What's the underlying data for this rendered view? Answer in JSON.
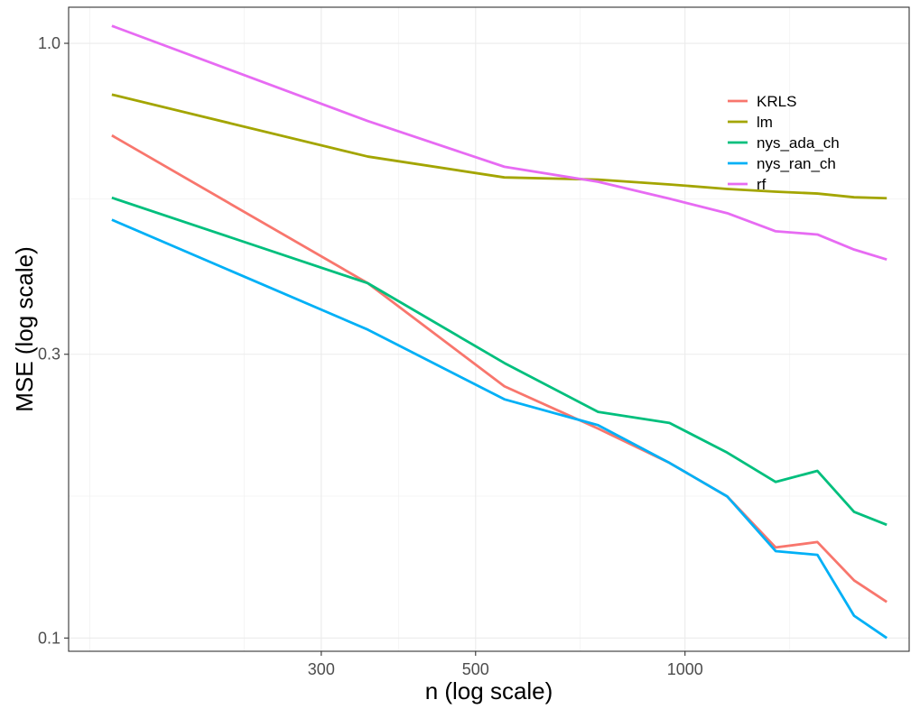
{
  "chart_data": {
    "type": "line",
    "title": "",
    "xlabel": "n (log scale)",
    "ylabel": "MSE (log scale)",
    "x_scale": "log",
    "y_scale": "log",
    "xlim": [
      130,
      2100
    ],
    "ylim": [
      0.095,
      1.15
    ],
    "x_ticks": [
      300,
      500,
      1000
    ],
    "x_tick_labels": [
      "300",
      "500",
      "1000"
    ],
    "y_ticks": [
      0.1,
      0.3,
      1.0
    ],
    "y_tick_labels": [
      "0.1",
      "0.3",
      "1.0"
    ],
    "grid": true,
    "legend_position": "top-right",
    "x": [
      150,
      350,
      550,
      750,
      950,
      1150,
      1350,
      1550,
      1750,
      1950
    ],
    "series": [
      {
        "name": "KRLS",
        "color": "#F8766D",
        "values": [
          0.7,
          0.395,
          0.265,
          0.225,
          0.197,
          0.173,
          0.142,
          0.145,
          0.125,
          0.115
        ]
      },
      {
        "name": "lm",
        "color": "#A3A500",
        "values": [
          0.82,
          0.645,
          0.595,
          0.59,
          0.579,
          0.569,
          0.563,
          0.559,
          0.551,
          0.549
        ]
      },
      {
        "name": "nys_ada_ch",
        "color": "#00BF7D",
        "values": [
          0.55,
          0.395,
          0.29,
          0.24,
          0.23,
          0.205,
          0.183,
          0.191,
          0.163,
          0.155
        ]
      },
      {
        "name": "nys_ran_ch",
        "color": "#00B0F6",
        "values": [
          0.505,
          0.33,
          0.252,
          0.228,
          0.197,
          0.173,
          0.14,
          0.138,
          0.109,
          0.1
        ]
      },
      {
        "name": "rf",
        "color": "#E76BF3",
        "values": [
          1.07,
          0.74,
          0.62,
          0.585,
          0.548,
          0.518,
          0.483,
          0.477,
          0.45,
          0.433
        ]
      }
    ]
  }
}
